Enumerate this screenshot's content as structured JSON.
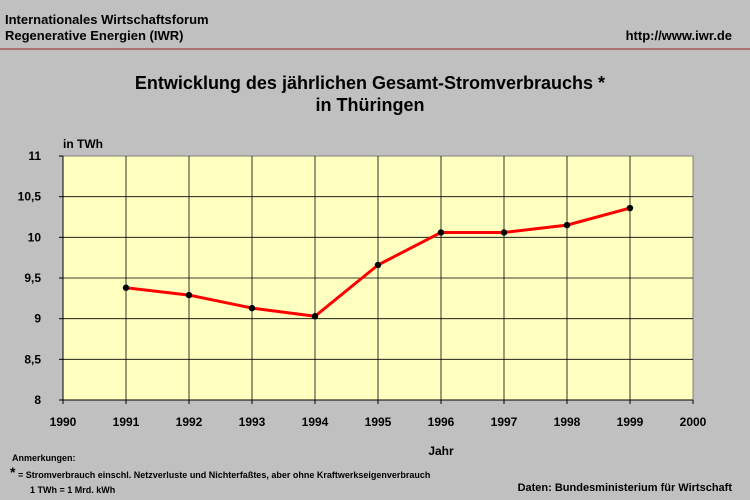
{
  "header": {
    "org_line1": "Internationales Wirtschaftsforum",
    "org_line2": "Regenerative Energien (IWR)",
    "url": "http://www.iwr.de"
  },
  "footer": {
    "notes_label": "Anmerkungen:",
    "star": "*",
    "note_text": "= Stromverbrauch einschl. Netzverluste und Nichterfaßtes, aber ohne Kraftwerkseigenverbrauch",
    "unit_note": "1 TWh = 1 Mrd. kWh",
    "source": "Daten: Bundesministerium für Wirtschaft"
  },
  "colors": {
    "background": "#c0c0c0",
    "plot_area": "#ffffc0",
    "line": "#ff0000",
    "marker": "#000000"
  },
  "chart_data": {
    "type": "line",
    "title_line1": "Entwicklung des jährlichen Gesamt-Stromverbrauchs *",
    "title_line2": "in Thüringen",
    "xlabel": "Jahr",
    "ylabel": "in TWh",
    "x": [
      1991,
      1992,
      1993,
      1994,
      1995,
      1996,
      1997,
      1998,
      1999
    ],
    "series": [
      {
        "values": [
          9.38,
          9.29,
          9.13,
          9.03,
          9.66,
          10.06,
          10.06,
          10.15,
          10.36
        ]
      }
    ],
    "xlim": [
      1990,
      2000
    ],
    "ylim": [
      8,
      11
    ],
    "x_ticks": [
      "1990",
      "1991",
      "1992",
      "1993",
      "1994",
      "1995",
      "1996",
      "1997",
      "1998",
      "1999",
      "2000"
    ],
    "y_ticks": [
      "8",
      "8,5",
      "9",
      "9,5",
      "10",
      "10,5",
      "11"
    ],
    "grid": true
  }
}
